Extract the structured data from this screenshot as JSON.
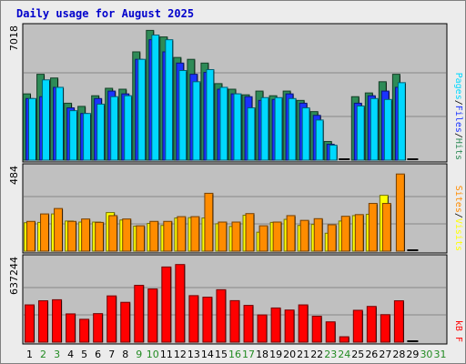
{
  "chart_data": {
    "type": "bar",
    "title": "Daily usage for August 2025",
    "categories": [
      "1",
      "2",
      "3",
      "4",
      "5",
      "6",
      "7",
      "8",
      "9",
      "10",
      "11",
      "12",
      "13",
      "14",
      "15",
      "16",
      "17",
      "18",
      "19",
      "20",
      "21",
      "22",
      "23",
      "24",
      "25",
      "26",
      "27",
      "28",
      "29",
      "30",
      "31"
    ],
    "weekend_days": [
      "2",
      "3",
      "9",
      "10",
      "16",
      "17",
      "23",
      "24",
      "30",
      "31"
    ],
    "panels": [
      {
        "id": "hits-files-pages",
        "ymax_label": "7018",
        "ylim": [
          0,
          7018
        ],
        "grid": true,
        "series": [
          {
            "name": "Hits",
            "color": "#2e8b57",
            "values": [
              3550,
              4600,
              4400,
              3050,
              2880,
              3450,
              3850,
              3800,
              5800,
              6950,
              6600,
              5500,
              5400,
              5200,
              4100,
              3800,
              3500,
              3700,
              3450,
              3700,
              3200,
              2600,
              1000,
              0,
              3400,
              3600,
              4200,
              4600,
              0,
              0,
              0
            ]
          },
          {
            "name": "Files",
            "color": "#1a33ff",
            "values": [
              3300,
              3400,
              3900,
              2800,
              2500,
              3300,
              3700,
              3550,
              5400,
              6450,
              5800,
              5200,
              4600,
              4700,
              3800,
              3550,
              3400,
              3200,
              3250,
              3550,
              3050,
              2400,
              850,
              0,
              3050,
              3450,
              3700,
              3900,
              0,
              0,
              0
            ]
          },
          {
            "name": "Pages",
            "color": "#00d8ff",
            "values": [
              3300,
              4300,
              3900,
              2650,
              2500,
              3000,
              3400,
              3450,
              5400,
              6700,
              6450,
              4800,
              4200,
              4850,
              3900,
              3550,
              2800,
              3350,
              3350,
              3300,
              2800,
              2150,
              800,
              0,
              2900,
              3300,
              3250,
              4150,
              0,
              0,
              0
            ]
          }
        ]
      },
      {
        "id": "visits-sites",
        "ymax_label": "484",
        "ylim": [
          0,
          484
        ],
        "grid": true,
        "series": [
          {
            "name": "Visits",
            "color": "#ffff00",
            "values": [
              168,
              170,
              220,
              178,
              172,
              172,
              228,
              184,
              148,
              164,
              152,
              196,
              198,
              196,
              162,
              146,
              212,
              112,
              170,
              188,
              152,
              158,
              106,
              178,
              210,
              218,
              330,
              0,
              0,
              0,
              0
            ]
          },
          {
            "name": "Sites",
            "color": "#ff8c00",
            "values": [
              176,
              220,
              252,
              176,
              190,
              170,
              210,
              190,
              150,
              176,
              176,
              204,
              204,
              342,
              172,
              172,
              222,
              150,
              172,
              210,
              182,
              192,
              156,
              206,
              216,
              282,
              282,
              456,
              0,
              0,
              0
            ]
          }
        ]
      },
      {
        "id": "kbf",
        "ymax_label": "637244",
        "ylim": [
          0,
          637244
        ],
        "grid": true,
        "series": [
          {
            "name": "kB F",
            "color": "#ff0000",
            "values": [
              290000,
              322000,
              330000,
              220000,
              178000,
              222000,
              360000,
              310000,
              442000,
              414000,
              585000,
              604000,
              362000,
              350000,
              408000,
              323000,
              286000,
              212000,
              266000,
              250000,
              290000,
              202000,
              158000,
              42000,
              248000,
              278000,
              214000,
              322000,
              0,
              0,
              0
            ]
          }
        ]
      }
    ]
  },
  "colors": {
    "background": "#ececec",
    "plot_background": "#c0c0c0",
    "weekday_label": "#000000",
    "weekend_label": "#228b22"
  }
}
